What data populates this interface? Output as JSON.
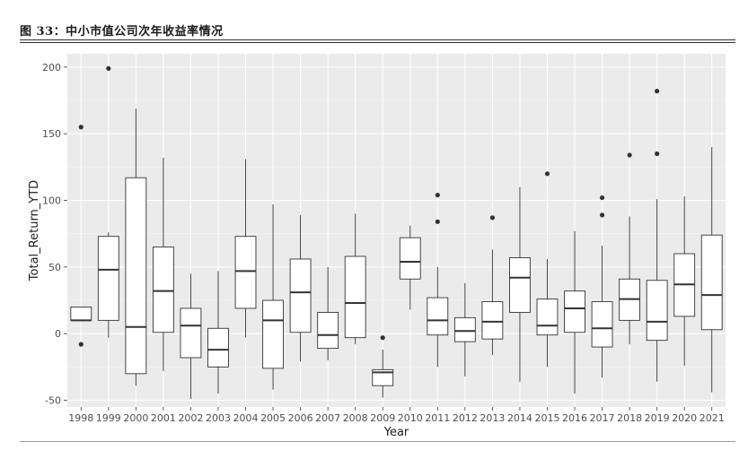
{
  "caption": {
    "title": "图 33：中小市值公司次年收益率情况"
  },
  "chart_data": {
    "type": "boxplot",
    "xlabel": "Year",
    "ylabel": "Total_Return_YTD",
    "ylim": [
      -55,
      210
    ],
    "yticks": [
      -50,
      0,
      50,
      100,
      150,
      200
    ],
    "grid": true,
    "categories": [
      "1998",
      "1999",
      "2000",
      "2001",
      "2002",
      "2003",
      "2004",
      "2005",
      "2006",
      "2007",
      "2008",
      "2009",
      "2010",
      "2011",
      "2012",
      "2013",
      "2014",
      "2015",
      "2016",
      "2017",
      "2018",
      "2019",
      "2020",
      "2021"
    ],
    "boxes": [
      {
        "year": "1998",
        "min": 10,
        "q1": 10,
        "median": 10,
        "q3": 20,
        "max": 20,
        "outliers": [
          155,
          -8
        ]
      },
      {
        "year": "1999",
        "min": -3,
        "q1": 10,
        "median": 48,
        "q3": 73,
        "max": 76,
        "outliers": [
          199
        ]
      },
      {
        "year": "2000",
        "min": -39,
        "q1": -30,
        "median": 5,
        "q3": 117,
        "max": 169,
        "outliers": []
      },
      {
        "year": "2001",
        "min": -28,
        "q1": 1,
        "median": 32,
        "q3": 65,
        "max": 132,
        "outliers": []
      },
      {
        "year": "2002",
        "min": -49,
        "q1": -18,
        "median": 6,
        "q3": 19,
        "max": 45,
        "outliers": []
      },
      {
        "year": "2003",
        "min": -45,
        "q1": -25,
        "median": -12,
        "q3": 4,
        "max": 47,
        "outliers": []
      },
      {
        "year": "2004",
        "min": -3,
        "q1": 19,
        "median": 47,
        "q3": 73,
        "max": 131,
        "outliers": []
      },
      {
        "year": "2005",
        "min": -42,
        "q1": -26,
        "median": 10,
        "q3": 25,
        "max": 97,
        "outliers": []
      },
      {
        "year": "2006",
        "min": -21,
        "q1": 1,
        "median": 31,
        "q3": 56,
        "max": 89,
        "outliers": []
      },
      {
        "year": "2007",
        "min": -20,
        "q1": -11,
        "median": -1,
        "q3": 16,
        "max": 50,
        "outliers": []
      },
      {
        "year": "2008",
        "min": -8,
        "q1": -3,
        "median": 23,
        "q3": 58,
        "max": 90,
        "outliers": []
      },
      {
        "year": "2009",
        "min": -48,
        "q1": -39,
        "median": -29,
        "q3": -27,
        "max": -12,
        "outliers": [
          -3
        ]
      },
      {
        "year": "2010",
        "min": 18,
        "q1": 41,
        "median": 54,
        "q3": 72,
        "max": 81,
        "outliers": []
      },
      {
        "year": "2011",
        "min": -25,
        "q1": -1,
        "median": 10,
        "q3": 27,
        "max": 50,
        "outliers": [
          104,
          84
        ]
      },
      {
        "year": "2012",
        "min": -32,
        "q1": -6,
        "median": 2,
        "q3": 12,
        "max": 38,
        "outliers": []
      },
      {
        "year": "2013",
        "min": -16,
        "q1": -4,
        "median": 9,
        "q3": 24,
        "max": 63,
        "outliers": [
          87
        ]
      },
      {
        "year": "2014",
        "min": -36,
        "q1": 16,
        "median": 42,
        "q3": 57,
        "max": 110,
        "outliers": []
      },
      {
        "year": "2015",
        "min": -25,
        "q1": -1,
        "median": 6,
        "q3": 26,
        "max": 56,
        "outliers": [
          120
        ]
      },
      {
        "year": "2016",
        "min": -45,
        "q1": 1,
        "median": 19,
        "q3": 32,
        "max": 77,
        "outliers": []
      },
      {
        "year": "2017",
        "min": -33,
        "q1": -10,
        "median": 4,
        "q3": 24,
        "max": 66,
        "outliers": [
          102,
          89
        ]
      },
      {
        "year": "2018",
        "min": -8,
        "q1": 10,
        "median": 26,
        "q3": 41,
        "max": 88,
        "outliers": [
          134
        ]
      },
      {
        "year": "2019",
        "min": -36,
        "q1": -5,
        "median": 9,
        "q3": 40,
        "max": 101,
        "outliers": [
          182,
          135
        ]
      },
      {
        "year": "2020",
        "min": -24,
        "q1": 13,
        "median": 37,
        "q3": 60,
        "max": 103,
        "outliers": []
      },
      {
        "year": "2021",
        "min": -44,
        "q1": 3,
        "median": 29,
        "q3": 74,
        "max": 140,
        "outliers": []
      }
    ],
    "colors": {
      "panel": "#ebebeb",
      "grid_major": "#ffffff",
      "box_fill": "#ffffff",
      "box_stroke": "#333333",
      "point": "#333333"
    }
  }
}
